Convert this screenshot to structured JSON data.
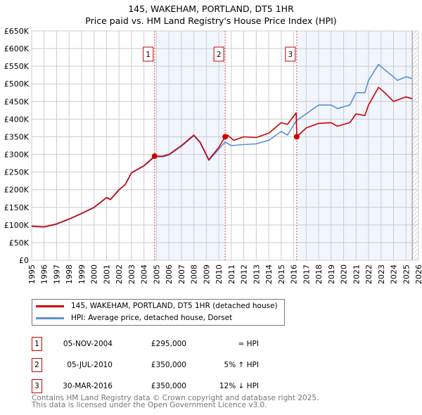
{
  "chart_data": {
    "type": "line",
    "title": "145, WAKEHAM, PORTLAND, DT5 1HR",
    "subtitle": "Price paid vs. HM Land Registry's House Price Index (HPI)",
    "xlim": [
      1995,
      2026
    ],
    "ylim": [
      0,
      650000
    ],
    "x_ticks": [
      "1995",
      "1996",
      "1997",
      "1998",
      "1999",
      "2000",
      "2001",
      "2002",
      "2003",
      "2004",
      "2005",
      "2006",
      "2007",
      "2008",
      "2009",
      "2010",
      "2011",
      "2012",
      "2013",
      "2014",
      "2015",
      "2016",
      "2017",
      "2018",
      "2019",
      "2020",
      "2021",
      "2022",
      "2023",
      "2024",
      "2025",
      "2026"
    ],
    "y_ticks": [
      {
        "v": 0,
        "label": "£0"
      },
      {
        "v": 50000,
        "label": "£50K"
      },
      {
        "v": 100000,
        "label": "£100K"
      },
      {
        "v": 150000,
        "label": "£150K"
      },
      {
        "v": 200000,
        "label": "£200K"
      },
      {
        "v": 250000,
        "label": "£250K"
      },
      {
        "v": 300000,
        "label": "£300K"
      },
      {
        "v": 350000,
        "label": "£350K"
      },
      {
        "v": 400000,
        "label": "£400K"
      },
      {
        "v": 450000,
        "label": "£450K"
      },
      {
        "v": 500000,
        "label": "£500K"
      },
      {
        "v": 550000,
        "label": "£550K"
      },
      {
        "v": 600000,
        "label": "£600K"
      },
      {
        "v": 650000,
        "label": "£650K"
      }
    ],
    "grid": true,
    "series": [
      {
        "name": "145, WAKEHAM, PORTLAND, DT5 1HR (detached house)",
        "color": "#cc0000",
        "x": [
          1995,
          1996,
          1997,
          1998,
          1999,
          2000,
          2001,
          2001.3,
          2002,
          2002.5,
          2003,
          2004,
          2004.85,
          2005.5,
          2006,
          2007,
          2008,
          2008.5,
          2009.2,
          2010,
          2010.5,
          2010.7,
          2011.2,
          2012,
          2013,
          2014,
          2015,
          2015.5,
          2016.2,
          2016.25,
          2017,
          2018,
          2019,
          2019.5,
          2020.5,
          2021,
          2021.7,
          2022,
          2022.8,
          2023.3,
          2024,
          2025,
          2025.5
        ],
        "y": [
          97000,
          95000,
          103000,
          117000,
          133000,
          150000,
          178000,
          172000,
          200000,
          215000,
          248000,
          268000,
          295000,
          295000,
          300000,
          325000,
          355000,
          335000,
          285000,
          320000,
          350000,
          355000,
          340000,
          350000,
          348000,
          360000,
          390000,
          385000,
          418000,
          350000,
          375000,
          388000,
          390000,
          380000,
          390000,
          415000,
          410000,
          440000,
          490000,
          475000,
          450000,
          463000,
          458000
        ]
      },
      {
        "name": "HPI: Average price, detached house, Dorset",
        "color": "#5b8fd4",
        "x": [
          1995,
          1996,
          1997,
          1998,
          1999,
          2000,
          2001,
          2001.3,
          2002,
          2002.5,
          2003,
          2004,
          2004.85,
          2005.5,
          2006,
          2007,
          2008,
          2008.5,
          2009.2,
          2010,
          2010.5,
          2011,
          2012,
          2013,
          2014,
          2015,
          2015.5,
          2016.2,
          2017,
          2018,
          2019,
          2019.5,
          2020.5,
          2021,
          2021.7,
          2022,
          2022.8,
          2023.3,
          2024,
          2024.3,
          2025,
          2025.5
        ],
        "y": [
          96000,
          94000,
          102000,
          116000,
          132000,
          149000,
          177000,
          171000,
          199000,
          214000,
          247000,
          267000,
          293000,
          293000,
          298000,
          323000,
          353000,
          333000,
          283000,
          315000,
          335000,
          325000,
          328000,
          330000,
          340000,
          365000,
          355000,
          395000,
          415000,
          440000,
          440000,
          430000,
          440000,
          475000,
          475000,
          510000,
          555000,
          540000,
          520000,
          510000,
          520000,
          515000
        ]
      }
    ],
    "sales": [
      {
        "id": "1",
        "x": 2004.85,
        "y": 295000,
        "date": "05-NOV-2004",
        "price": "£295,000",
        "hpi": "≈ HPI"
      },
      {
        "id": "2",
        "x": 2010.51,
        "y": 350000,
        "date": "05-JUL-2010",
        "price": "£350,000",
        "hpi": "5% ↑ HPI"
      },
      {
        "id": "3",
        "x": 2016.24,
        "y": 350000,
        "date": "30-MAR-2016",
        "price": "£350,000",
        "hpi": "12% ↓ HPI"
      }
    ],
    "shaded_ranges": [
      [
        2004.85,
        2010.51
      ],
      [
        2016.24,
        2025.5
      ]
    ],
    "forecast_hatch_from": 2025.5,
    "footer": [
      "Contains HM Land Registry data © Crown copyright and database right 2025.",
      "This data is licensed under the Open Government Licence v3.0."
    ]
  }
}
